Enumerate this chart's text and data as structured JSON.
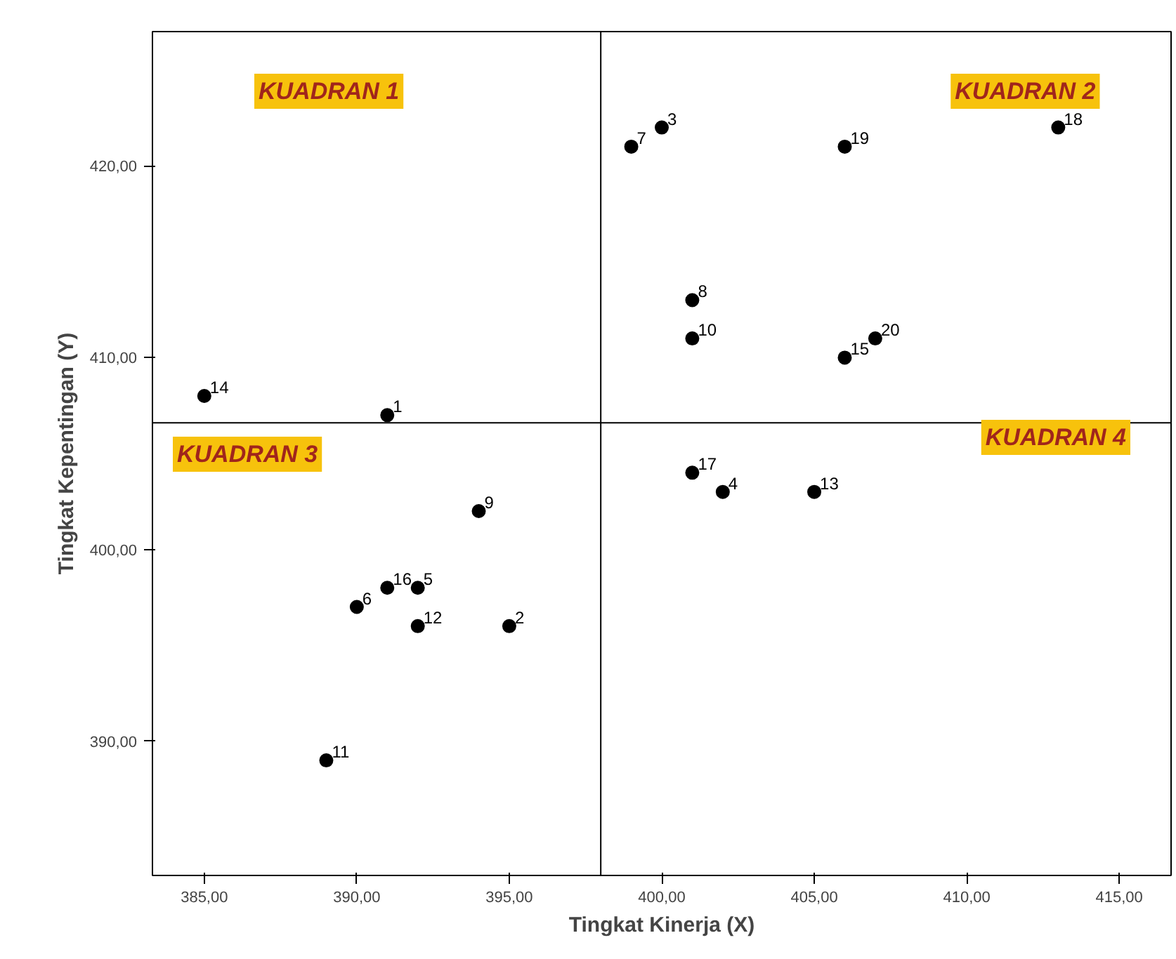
{
  "chart_data": {
    "type": "scatter",
    "xlabel": "Tingkat Kinerja (X)",
    "ylabel": "Tingkat Kepentingan (Y)",
    "x": [
      391,
      395,
      400,
      402,
      392,
      390,
      399,
      401,
      394,
      401,
      389,
      392,
      405,
      385,
      406,
      391,
      401,
      413,
      406,
      407
    ],
    "series": [
      {
        "color": "#000000",
        "values": [
          407,
          396,
          422,
          403,
          398,
          397,
          421,
          413,
          402,
          411,
          389,
          396,
          403,
          408,
          410,
          398,
          404,
          422,
          421,
          411
        ]
      }
    ],
    "marker": "circle",
    "grid": false,
    "xlim": [
      383.3,
      416.7
    ],
    "ylim": [
      383,
      427
    ],
    "xticks": [
      {
        "value": 385,
        "label": "385,00"
      },
      {
        "value": 390,
        "label": "390,00"
      },
      {
        "value": 395,
        "label": "395,00"
      },
      {
        "value": 400,
        "label": "400,00"
      },
      {
        "value": 405,
        "label": "405,00"
      },
      {
        "value": 410,
        "label": "410,00"
      },
      {
        "value": 415,
        "label": "415,00"
      }
    ],
    "yticks": [
      {
        "value": 390,
        "label": "390,00"
      },
      {
        "value": 400,
        "label": "400,00"
      },
      {
        "value": 410,
        "label": "410,00"
      },
      {
        "value": 420,
        "label": "420,00"
      }
    ],
    "ref_lines": [
      {
        "axis": "x",
        "value": 398,
        "color": "#000000"
      },
      {
        "axis": "y",
        "value": 406.6,
        "color": "#000000"
      }
    ],
    "annotations": [
      "KUADRAN 1",
      "KUADRAN 2",
      "KUADRAN 3",
      "KUADRAN 4",
      {
        "text": "1",
        "x": 391,
        "y": 407
      },
      {
        "text": "2",
        "x": 395,
        "y": 396
      },
      {
        "text": "3",
        "x": 400,
        "y": 422
      },
      {
        "text": "4",
        "x": 402,
        "y": 403
      },
      {
        "text": "5",
        "x": 392,
        "y": 398
      },
      {
        "text": "6",
        "x": 390,
        "y": 397
      },
      {
        "text": "7",
        "x": 399,
        "y": 421
      },
      {
        "text": "8",
        "x": 401,
        "y": 413
      },
      {
        "text": "9",
        "x": 394,
        "y": 402
      },
      {
        "text": "10",
        "x": 401,
        "y": 411
      },
      {
        "text": "11",
        "x": 389,
        "y": 389
      },
      {
        "text": "12",
        "x": 392,
        "y": 396
      },
      {
        "text": "13",
        "x": 405,
        "y": 403
      },
      {
        "text": "14",
        "x": 385,
        "y": 408
      },
      {
        "text": "15",
        "x": 406,
        "y": 410
      },
      {
        "text": "16",
        "x": 391,
        "y": 398
      },
      {
        "text": "17",
        "x": 401,
        "y": 404
      },
      {
        "text": "18",
        "x": 413,
        "y": 422
      },
      {
        "text": "19",
        "x": 406,
        "y": 421
      },
      {
        "text": "20",
        "x": 407,
        "y": 411
      }
    ]
  }
}
